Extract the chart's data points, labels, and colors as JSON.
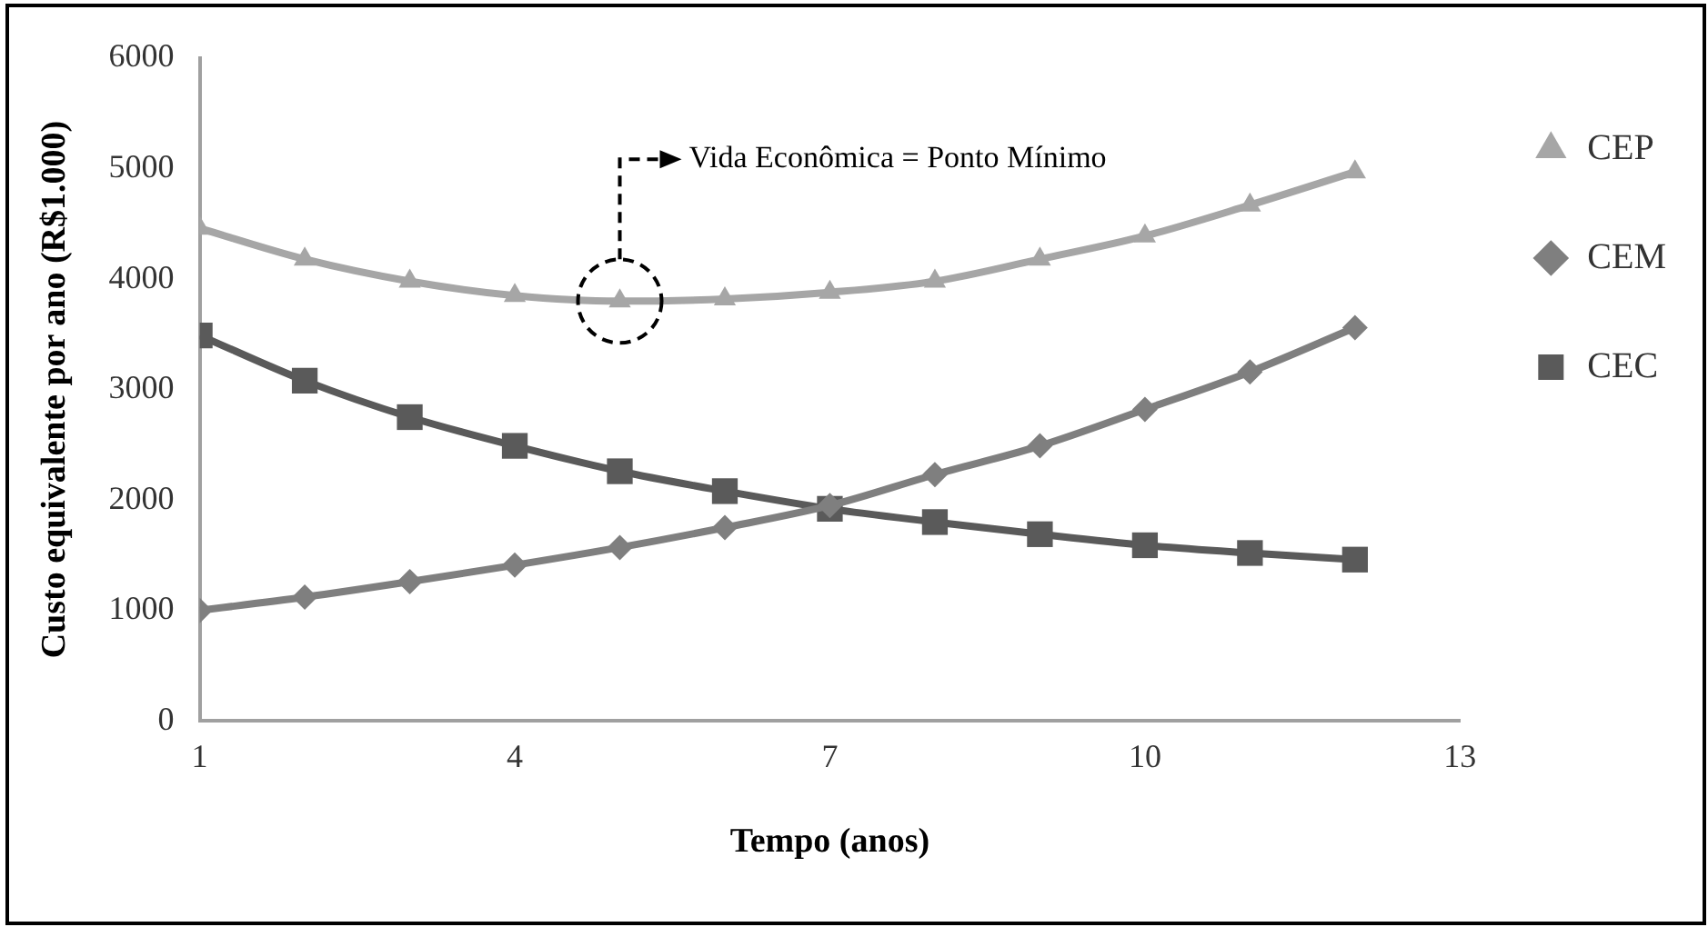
{
  "chart_data": {
    "type": "line",
    "ylabel": "Custo equivalente por ano (R$1.000)",
    "xlabel": "Tempo (anos)",
    "x": [
      1,
      2,
      3,
      4,
      5,
      6,
      7,
      8,
      9,
      10,
      11,
      12
    ],
    "series": [
      {
        "name": "CEP",
        "color": "#a6a6a6",
        "marker": "triangle",
        "values": [
          4460,
          4180,
          3980,
          3850,
          3800,
          3820,
          3880,
          3980,
          4180,
          4390,
          4670,
          4970
        ]
      },
      {
        "name": "CEM",
        "color": "#7f7f7f",
        "marker": "diamond",
        "values": [
          1000,
          1120,
          1260,
          1410,
          1570,
          1750,
          1950,
          2230,
          2490,
          2820,
          3160,
          3560
        ]
      },
      {
        "name": "CEC",
        "color": "#5a5a5a",
        "marker": "square",
        "values": [
          3490,
          3080,
          2750,
          2490,
          2260,
          2080,
          1920,
          1800,
          1690,
          1590,
          1520,
          1460
        ]
      }
    ],
    "xlim": [
      1,
      13
    ],
    "xticks": [
      1,
      4,
      7,
      10,
      13
    ],
    "ylim": [
      0,
      6000
    ],
    "yticks": [
      0,
      1000,
      2000,
      3000,
      4000,
      5000,
      6000
    ],
    "grid": false,
    "legend": "right",
    "annotations": [
      "Vida Econômica = Ponto Mínimo"
    ]
  }
}
